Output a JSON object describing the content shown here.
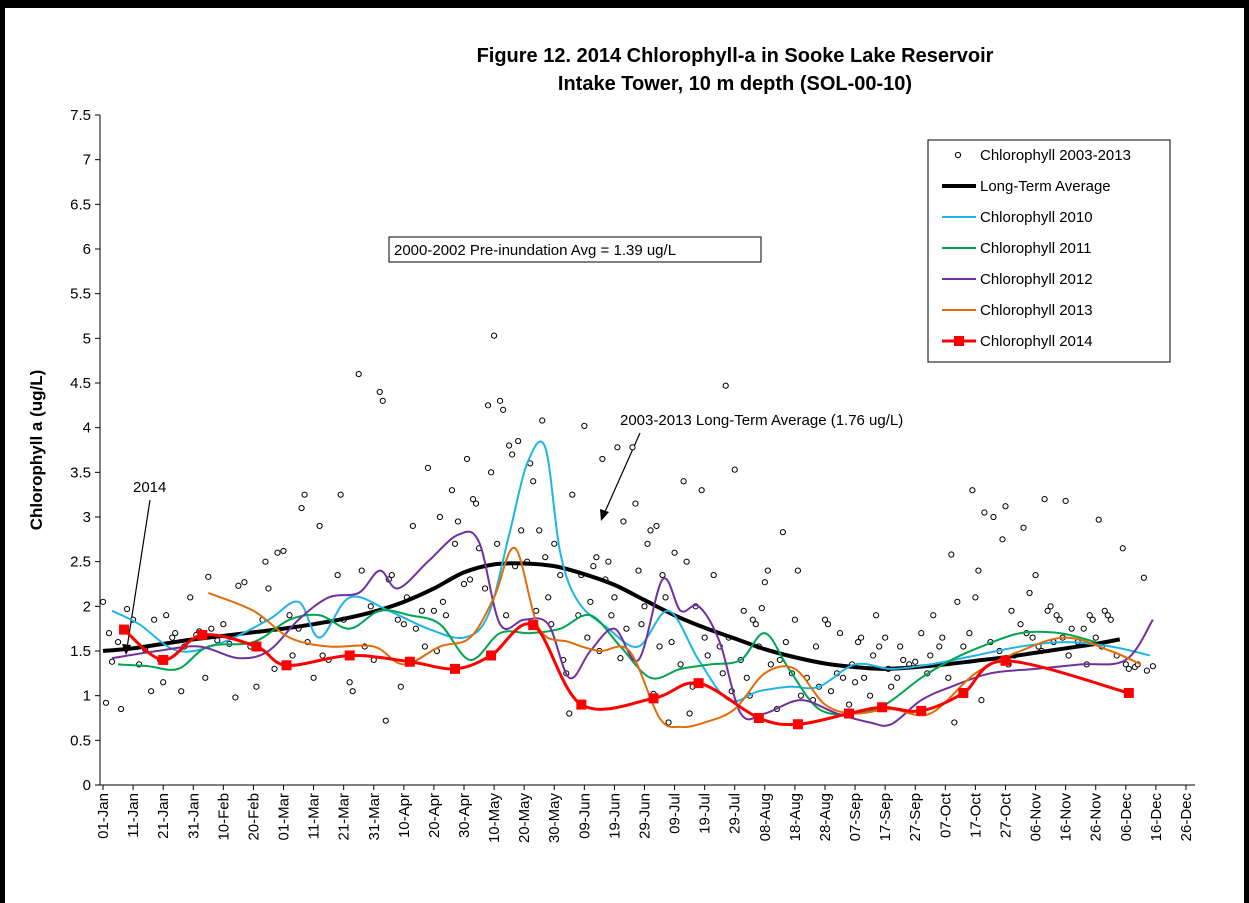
{
  "chart_data": {
    "type": "line",
    "title": "Figure 12. 2014 Chlorophyll-a in Sooke Lake Reservoir",
    "subtitle": "Intake Tower, 10 m depth (SOL-00-10)",
    "y_label": "Chlorophyll a (ug/L)",
    "annotations": [
      "2000-2002 Pre-inundation Avg = 1.39 ug/L",
      "2003-2013 Long-Term Average (1.76 ug/L)",
      "2014"
    ],
    "xlim": [
      -1,
      363
    ],
    "ylim": [
      0,
      7.5
    ],
    "xticks": [
      {
        "value": 0,
        "label": "01-Jan"
      },
      {
        "value": 10,
        "label": "11-Jan"
      },
      {
        "value": 20,
        "label": "21-Jan"
      },
      {
        "value": 30,
        "label": "31-Jan"
      },
      {
        "value": 40,
        "label": "10-Feb"
      },
      {
        "value": 50,
        "label": "20-Feb"
      },
      {
        "value": 60,
        "label": "01-Mar"
      },
      {
        "value": 70,
        "label": "11-Mar"
      },
      {
        "value": 80,
        "label": "21-Mar"
      },
      {
        "value": 90,
        "label": "31-Mar"
      },
      {
        "value": 100,
        "label": "10-Apr"
      },
      {
        "value": 110,
        "label": "20-Apr"
      },
      {
        "value": 120,
        "label": "30-Apr"
      },
      {
        "value": 130,
        "label": "10-May"
      },
      {
        "value": 140,
        "label": "20-May"
      },
      {
        "value": 150,
        "label": "30-May"
      },
      {
        "value": 160,
        "label": "09-Jun"
      },
      {
        "value": 170,
        "label": "19-Jun"
      },
      {
        "value": 180,
        "label": "29-Jun"
      },
      {
        "value": 190,
        "label": "09-Jul"
      },
      {
        "value": 200,
        "label": "19-Jul"
      },
      {
        "value": 210,
        "label": "29-Jul"
      },
      {
        "value": 220,
        "label": "08-Aug"
      },
      {
        "value": 230,
        "label": "18-Aug"
      },
      {
        "value": 240,
        "label": "28-Aug"
      },
      {
        "value": 250,
        "label": "07-Sep"
      },
      {
        "value": 260,
        "label": "17-Sep"
      },
      {
        "value": 270,
        "label": "27-Sep"
      },
      {
        "value": 280,
        "label": "07-Oct"
      },
      {
        "value": 290,
        "label": "17-Oct"
      },
      {
        "value": 300,
        "label": "27-Oct"
      },
      {
        "value": 310,
        "label": "06-Nov"
      },
      {
        "value": 320,
        "label": "16-Nov"
      },
      {
        "value": 330,
        "label": "26-Nov"
      },
      {
        "value": 340,
        "label": "06-Dec"
      },
      {
        "value": 350,
        "label": "16-Dec"
      },
      {
        "value": 360,
        "label": "26-Dec"
      }
    ],
    "yticks": [
      0,
      0.5,
      1,
      1.5,
      2,
      2.5,
      3,
      3.5,
      4,
      4.5,
      5,
      5.5,
      6,
      6.5,
      7,
      7.5
    ],
    "grid": false,
    "legend": "top-right",
    "series": [
      {
        "name": "Chlorophyll 2003-2013",
        "color": "#000000",
        "style": "points",
        "x": [
          0,
          1,
          2,
          3,
          5,
          6,
          8,
          10,
          12,
          14,
          16,
          17,
          19,
          20,
          21,
          23,
          24,
          26,
          27,
          29,
          31,
          32,
          34,
          35,
          36,
          38,
          40,
          42,
          44,
          45,
          47,
          49,
          51,
          53,
          54,
          55,
          57,
          58,
          60,
          62,
          63,
          65,
          66,
          67,
          68,
          70,
          72,
          73,
          75,
          78,
          79,
          80,
          82,
          83,
          85,
          86,
          87,
          89,
          90,
          92,
          93,
          94,
          95,
          96,
          98,
          99,
          100,
          101,
          103,
          104,
          106,
          107,
          108,
          110,
          111,
          112,
          113,
          114,
          116,
          117,
          118,
          120,
          121,
          122,
          123,
          124,
          125,
          127,
          128,
          129,
          130,
          131,
          132,
          133,
          134,
          135,
          136,
          137,
          138,
          139,
          141,
          142,
          143,
          144,
          145,
          146,
          147,
          148,
          149,
          150,
          152,
          153,
          154,
          155,
          156,
          158,
          159,
          160,
          161,
          162,
          163,
          164,
          165,
          166,
          167,
          168,
          169,
          170,
          171,
          172,
          173,
          174,
          176,
          177,
          178,
          179,
          180,
          181,
          182,
          183,
          184,
          185,
          186,
          187,
          188,
          189,
          190,
          192,
          193,
          194,
          195,
          196,
          197,
          199,
          200,
          201,
          203,
          205,
          206,
          207,
          208,
          209,
          210,
          212,
          213,
          214,
          215,
          216,
          217,
          218,
          219,
          220,
          221,
          222,
          224,
          225,
          226,
          227,
          229,
          230,
          231,
          232,
          234,
          236,
          237,
          238,
          240,
          241,
          242,
          244,
          245,
          246,
          248,
          249,
          250,
          251,
          252,
          253,
          255,
          256,
          257,
          258,
          260,
          261,
          262,
          264,
          265,
          266,
          268,
          270,
          272,
          274,
          275,
          276,
          278,
          279,
          281,
          282,
          283,
          284,
          286,
          288,
          289,
          290,
          291,
          292,
          293,
          295,
          296,
          298,
          299,
          300,
          301,
          302,
          303,
          305,
          306,
          307,
          308,
          309,
          310,
          311,
          312,
          313,
          314,
          315,
          316,
          317,
          318,
          319,
          320,
          321,
          322,
          324,
          326,
          327,
          328,
          329,
          330,
          331,
          332,
          333,
          334,
          335,
          337,
          339,
          340,
          341,
          343,
          344,
          346,
          347,
          349
        ],
        "values": [
          2.05,
          0.92,
          1.7,
          1.38,
          1.6,
          0.85,
          1.97,
          1.85,
          1.35,
          1.52,
          1.05,
          1.85,
          1.4,
          1.15,
          1.9,
          1.65,
          1.7,
          1.05,
          1.55,
          2.1,
          1.68,
          1.72,
          1.2,
          2.33,
          1.75,
          1.62,
          1.8,
          1.58,
          0.98,
          2.23,
          2.27,
          1.55,
          1.1,
          1.85,
          2.5,
          2.2,
          1.3,
          2.6,
          2.62,
          1.9,
          1.45,
          1.75,
          3.1,
          3.25,
          1.6,
          1.2,
          2.9,
          1.45,
          1.4,
          2.35,
          3.25,
          1.85,
          1.15,
          1.05,
          4.6,
          2.4,
          1.55,
          2.0,
          1.4,
          4.4,
          4.3,
          0.72,
          2.3,
          2.35,
          1.85,
          1.1,
          1.8,
          2.1,
          2.9,
          1.75,
          1.95,
          1.55,
          3.55,
          1.95,
          1.5,
          3.0,
          2.05,
          1.9,
          3.3,
          2.7,
          2.95,
          2.25,
          3.65,
          2.3,
          3.2,
          3.15,
          2.65,
          2.2,
          4.25,
          3.5,
          5.03,
          2.7,
          4.3,
          4.2,
          1.9,
          3.8,
          3.7,
          2.45,
          3.85,
          2.85,
          2.5,
          3.6,
          3.4,
          1.95,
          2.85,
          4.08,
          2.55,
          2.1,
          1.8,
          2.7,
          2.35,
          1.4,
          1.25,
          0.8,
          3.25,
          1.9,
          2.35,
          4.02,
          1.65,
          2.05,
          2.45,
          2.55,
          1.5,
          3.65,
          2.3,
          2.5,
          1.9,
          2.1,
          3.78,
          1.42,
          2.95,
          1.75,
          3.78,
          3.15,
          2.4,
          1.8,
          2.0,
          2.7,
          2.85,
          1.02,
          2.9,
          1.55,
          2.35,
          2.1,
          0.7,
          1.6,
          2.6,
          1.35,
          3.4,
          2.5,
          0.8,
          1.1,
          2.0,
          3.3,
          1.65,
          1.45,
          2.35,
          1.55,
          1.25,
          4.47,
          1.65,
          1.05,
          3.53,
          1.4,
          1.95,
          1.2,
          1.0,
          1.85,
          1.8,
          1.55,
          1.98,
          2.27,
          2.4,
          1.35,
          0.85,
          1.4,
          2.83,
          1.6,
          1.25,
          1.85,
          2.4,
          1.0,
          1.2,
          0.95,
          1.55,
          1.1,
          1.85,
          1.8,
          1.05,
          1.25,
          1.7,
          1.2,
          0.9,
          1.35,
          1.15,
          1.6,
          1.65,
          1.2,
          1.0,
          1.45,
          1.9,
          1.55,
          1.65,
          1.3,
          1.1,
          1.2,
          1.55,
          1.4,
          1.35,
          1.38,
          1.7,
          1.25,
          1.45,
          1.9,
          1.55,
          1.65,
          1.2,
          2.58,
          0.7,
          2.05,
          1.55,
          1.7,
          3.3,
          2.1,
          2.4,
          0.95,
          3.05,
          1.6,
          3.0,
          1.5,
          2.75,
          3.12,
          1.35,
          1.95,
          1.45,
          1.8,
          2.88,
          1.7,
          2.15,
          1.65,
          2.35,
          1.55,
          1.5,
          3.2,
          1.95,
          2.0,
          1.6,
          1.9,
          1.85,
          1.65,
          3.18,
          1.45,
          1.75,
          1.6,
          1.75,
          1.35,
          1.9,
          1.85,
          1.65,
          2.97,
          1.55,
          1.95,
          1.9,
          1.85,
          1.45,
          2.65,
          1.35,
          1.3,
          1.32,
          1.35,
          2.32,
          1.28,
          1.33
        ]
      },
      {
        "name": "Long-Term Average",
        "color": "#000000",
        "style": "line",
        "x": [
          0,
          10,
          20,
          30,
          40,
          50,
          60,
          70,
          80,
          90,
          100,
          110,
          120,
          130,
          140,
          150,
          160,
          170,
          180,
          190,
          200,
          210,
          220,
          230,
          240,
          250,
          260,
          270,
          280,
          290,
          300,
          310,
          320,
          330,
          338
        ],
        "values": [
          1.5,
          1.53,
          1.58,
          1.63,
          1.67,
          1.71,
          1.75,
          1.8,
          1.86,
          1.94,
          2.05,
          2.2,
          2.38,
          2.47,
          2.48,
          2.45,
          2.36,
          2.24,
          2.07,
          1.9,
          1.76,
          1.64,
          1.52,
          1.43,
          1.36,
          1.32,
          1.3,
          1.32,
          1.35,
          1.39,
          1.43,
          1.48,
          1.53,
          1.58,
          1.63
        ]
      },
      {
        "name": "Chlorophyll 2010",
        "color": "#1fb4e6",
        "style": "line",
        "x": [
          3,
          12,
          25,
          40,
          55,
          65,
          72,
          82,
          95,
          108,
          120,
          128,
          135,
          141,
          147,
          152,
          158,
          168,
          178,
          188,
          198,
          208,
          218,
          228,
          238,
          250,
          262,
          275,
          290,
          305,
          320,
          335,
          348
        ],
        "values": [
          1.95,
          1.8,
          1.5,
          1.6,
          1.85,
          2.05,
          1.65,
          2.1,
          1.95,
          1.75,
          1.65,
          1.9,
          2.8,
          3.6,
          3.78,
          2.6,
          2.05,
          1.75,
          1.55,
          1.95,
          1.4,
          0.95,
          1.05,
          1.1,
          1.1,
          1.35,
          1.3,
          1.35,
          1.45,
          1.55,
          1.6,
          1.55,
          1.45
        ]
      },
      {
        "name": "Chlorophyll 2011",
        "color": "#00a550",
        "style": "line",
        "x": [
          5,
          15,
          25,
          35,
          50,
          62,
          72,
          82,
          92,
          102,
          112,
          122,
          132,
          142,
          152,
          162,
          172,
          182,
          192,
          202,
          212,
          220,
          228,
          238,
          250,
          260,
          272,
          282,
          292,
          305,
          318,
          330
        ],
        "values": [
          1.35,
          1.33,
          1.3,
          1.55,
          1.6,
          1.85,
          1.9,
          1.75,
          1.95,
          1.9,
          1.8,
          1.4,
          1.7,
          1.7,
          1.75,
          1.9,
          1.55,
          1.2,
          1.3,
          1.35,
          1.4,
          1.7,
          1.3,
          0.85,
          0.8,
          0.9,
          1.2,
          1.4,
          1.55,
          1.7,
          1.7,
          1.6
        ]
      },
      {
        "name": "Chlorophyll 2012",
        "color": "#7030a0",
        "style": "line",
        "x": [
          3,
          18,
          32,
          45,
          55,
          65,
          75,
          85,
          92,
          98,
          108,
          118,
          125,
          132,
          140,
          148,
          155,
          162,
          170,
          178,
          186,
          192,
          198,
          205,
          212,
          220,
          232,
          244,
          255,
          262,
          272,
          282,
          295,
          310,
          325,
          340,
          349
        ],
        "values": [
          1.42,
          1.5,
          1.55,
          1.42,
          1.5,
          1.85,
          2.1,
          2.15,
          2.4,
          2.2,
          2.5,
          2.8,
          2.72,
          1.8,
          1.85,
          1.8,
          1.2,
          1.5,
          1.75,
          1.4,
          2.3,
          1.95,
          2.0,
          1.6,
          0.8,
          0.8,
          0.95,
          0.8,
          0.7,
          0.68,
          0.95,
          1.1,
          1.25,
          1.3,
          1.35,
          1.4,
          1.85
        ]
      },
      {
        "name": "Chlorophyll 2013",
        "color": "#e36c09",
        "style": "line",
        "x": [
          35,
          50,
          62,
          75,
          90,
          100,
          112,
          122,
          130,
          137,
          145,
          155,
          165,
          175,
          185,
          192,
          200,
          210,
          220,
          230,
          240,
          250,
          262,
          275,
          290,
          305,
          320,
          335,
          345
        ],
        "values": [
          2.15,
          1.95,
          1.65,
          1.55,
          1.55,
          1.35,
          1.55,
          1.65,
          2.1,
          2.65,
          1.75,
          1.6,
          1.5,
          1.5,
          0.75,
          0.65,
          0.7,
          0.85,
          1.25,
          1.3,
          0.9,
          0.8,
          0.85,
          0.8,
          1.25,
          1.5,
          1.65,
          1.5,
          1.35
        ]
      },
      {
        "name": "Chlorophyll 2014",
        "color": "#ff0000",
        "style": "line-markers",
        "x": [
          7,
          20,
          33,
          51,
          61,
          82,
          102,
          117,
          129,
          143,
          159,
          183,
          198,
          218,
          231,
          248,
          259,
          272,
          286,
          300,
          341
        ],
        "values": [
          1.74,
          1.4,
          1.68,
          1.55,
          1.34,
          1.45,
          1.38,
          1.3,
          1.45,
          1.79,
          0.9,
          0.97,
          1.14,
          0.75,
          0.68,
          0.8,
          0.87,
          0.83,
          1.03,
          1.39,
          1.03
        ]
      }
    ]
  }
}
